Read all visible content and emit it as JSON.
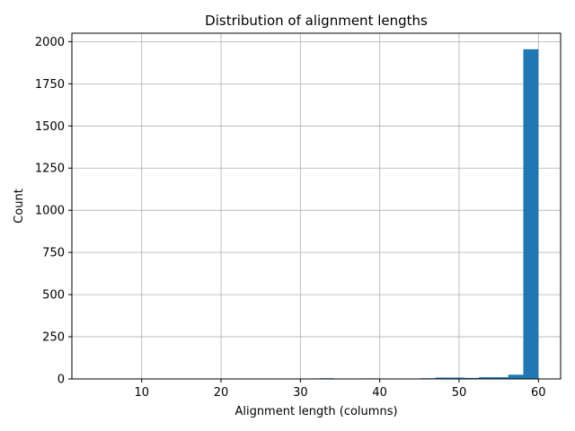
{
  "chart_data": {
    "type": "bar",
    "title": "Distribution of alignment lengths",
    "xlabel": "Alignment length (columns)",
    "ylabel": "Count",
    "xlim": [
      1.2,
      62.8
    ],
    "ylim": [
      0,
      2050
    ],
    "xticks": [
      10,
      20,
      30,
      40,
      50,
      60
    ],
    "yticks": [
      0,
      250,
      500,
      750,
      1000,
      1250,
      1500,
      1750,
      2000
    ],
    "grid": true,
    "bar_color": "#1f77b4",
    "bins": [
      {
        "x0": 32.4,
        "x1": 34.2,
        "count": 4
      },
      {
        "x0": 38.0,
        "x1": 39.8,
        "count": 3
      },
      {
        "x0": 41.5,
        "x1": 43.4,
        "count": 2
      },
      {
        "x0": 43.4,
        "x1": 45.2,
        "count": 2
      },
      {
        "x0": 45.2,
        "x1": 47.0,
        "count": 4
      },
      {
        "x0": 47.0,
        "x1": 48.9,
        "count": 8
      },
      {
        "x0": 48.9,
        "x1": 50.7,
        "count": 8
      },
      {
        "x0": 50.7,
        "x1": 52.5,
        "count": 6
      },
      {
        "x0": 52.5,
        "x1": 54.4,
        "count": 10
      },
      {
        "x0": 54.4,
        "x1": 56.2,
        "count": 10
      },
      {
        "x0": 56.2,
        "x1": 58.1,
        "count": 25
      },
      {
        "x0": 58.1,
        "x1": 60.0,
        "count": 1955
      }
    ]
  }
}
